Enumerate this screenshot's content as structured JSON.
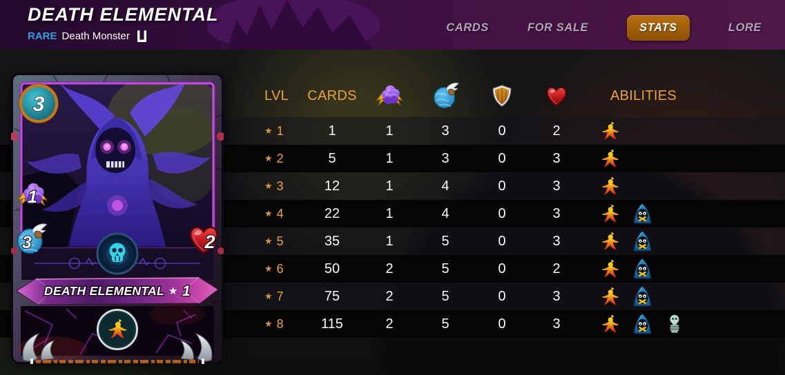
{
  "header": {
    "title": "DEATH ELEMENTAL",
    "rarity_label": "RARE",
    "type_label": "Death Monster",
    "edition_icon": "untamed-icon",
    "rarity_color": "#2f9fe4",
    "active_tab_color": "#a4610a",
    "tabs": [
      {
        "label": "CARDS",
        "active": false
      },
      {
        "label": "FOR SALE",
        "active": false
      },
      {
        "label": "STATS",
        "active": true
      },
      {
        "label": "LORE",
        "active": false
      }
    ]
  },
  "card": {
    "name": "DEATH ELEMENTAL",
    "level_star": "★",
    "level": "1",
    "mana": "3",
    "magic_attack": "1",
    "speed": "3",
    "health": "2",
    "splinter": "death",
    "ability": "affliction"
  },
  "stats_table": {
    "header_color": "#eba23d",
    "headers": {
      "lvl": "LVL",
      "cards": "CARDS",
      "abilities": "ABILITIES"
    },
    "header_icons": [
      "magic-attack-icon",
      "speed-icon",
      "armor-icon",
      "health-icon"
    ],
    "rows": [
      {
        "level": "1",
        "cards": "1",
        "magic": "1",
        "speed": "3",
        "armor": "0",
        "health": "2",
        "abilities": [
          "affliction"
        ]
      },
      {
        "level": "2",
        "cards": "5",
        "magic": "1",
        "speed": "3",
        "armor": "0",
        "health": "3",
        "abilities": [
          "affliction"
        ]
      },
      {
        "level": "3",
        "cards": "12",
        "magic": "1",
        "speed": "4",
        "armor": "0",
        "health": "3",
        "abilities": [
          "affliction"
        ]
      },
      {
        "level": "4",
        "cards": "22",
        "magic": "1",
        "speed": "4",
        "armor": "0",
        "health": "3",
        "abilities": [
          "affliction",
          "silence"
        ]
      },
      {
        "level": "5",
        "cards": "35",
        "magic": "1",
        "speed": "5",
        "armor": "0",
        "health": "3",
        "abilities": [
          "affliction",
          "silence"
        ]
      },
      {
        "level": "6",
        "cards": "50",
        "magic": "2",
        "speed": "5",
        "armor": "0",
        "health": "2",
        "abilities": [
          "affliction",
          "silence"
        ]
      },
      {
        "level": "7",
        "cards": "75",
        "magic": "2",
        "speed": "5",
        "armor": "0",
        "health": "3",
        "abilities": [
          "affliction",
          "silence"
        ]
      },
      {
        "level": "8",
        "cards": "115",
        "magic": "2",
        "speed": "5",
        "armor": "0",
        "health": "3",
        "abilities": [
          "affliction",
          "silence",
          "weaken"
        ]
      }
    ]
  }
}
